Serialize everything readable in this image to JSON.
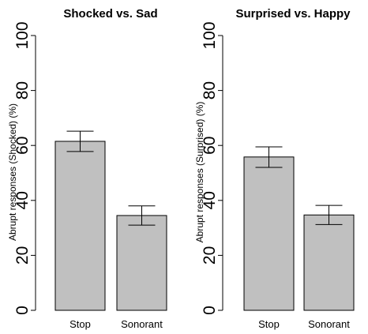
{
  "chart_data": [
    {
      "type": "bar",
      "title": "Shocked vs. Sad",
      "ylabel": "Abrupt responses (Shocked) (%)",
      "xlabel": "",
      "categories": [
        "Stop",
        "Sonorant"
      ],
      "values": [
        61.5,
        34.5
      ],
      "error_low": [
        57.8,
        31.0
      ],
      "error_high": [
        65.2,
        38.0
      ],
      "ylim": [
        0,
        100
      ],
      "yticks": [
        "0",
        "20",
        "40",
        "60",
        "80",
        "100"
      ],
      "bar_color": "#c0c0c0",
      "grid": false
    },
    {
      "type": "bar",
      "title": "Surprised vs. Happy",
      "ylabel": "Abrupt responses (Surprised) (%)",
      "xlabel": "",
      "categories": [
        "Stop",
        "Sonorant"
      ],
      "values": [
        55.8,
        34.7
      ],
      "error_low": [
        52.0,
        31.2
      ],
      "error_high": [
        59.5,
        38.2
      ],
      "ylim": [
        0,
        100
      ],
      "yticks": [
        "0",
        "20",
        "40",
        "60",
        "80",
        "100"
      ],
      "bar_color": "#c0c0c0",
      "grid": false
    }
  ]
}
